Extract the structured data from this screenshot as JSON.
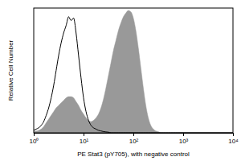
{
  "chart_data": {
    "type": "line",
    "x_label": "PE Stat3 (pY705), with negative control",
    "y_label": "Relative Cell Number",
    "log": "x",
    "tick_labels": "x",
    "x": [
      1,
      1.122,
      1.259,
      1.413,
      1.585,
      1.778,
      1.995,
      2.239,
      2.512,
      2.818,
      3.162,
      3.548,
      3.981,
      4.467,
      5.012,
      5.623,
      6.31,
      7.079,
      7.943,
      8.913,
      10,
      11.22,
      12.59,
      14.13,
      15.85,
      17.78,
      19.95,
      22.39,
      25.12,
      28.18,
      31.62,
      35.48,
      39.81,
      44.67,
      50.12,
      56.23,
      63.1,
      70.79,
      79.43,
      89.13,
      100,
      112.2,
      125.9,
      141.3,
      158.5,
      177.8,
      199.5,
      223.9,
      251.2,
      281.8,
      316.2,
      354.8,
      398.1,
      446.7,
      501.2,
      562.3,
      631,
      707.9,
      794.3,
      891.3,
      1000,
      3162,
      10000
    ],
    "xlim": [
      1,
      10000
    ],
    "xticks": [
      {
        "value": 1,
        "label": "10⁰"
      },
      {
        "value": 10,
        "label": "10¹"
      },
      {
        "value": 100,
        "label": "10²"
      },
      {
        "value": 1000,
        "label": "10³"
      },
      {
        "value": 10000,
        "label": "10⁴"
      }
    ],
    "ylim": [
      0,
      100
    ],
    "series": [
      {
        "type": "area",
        "color": "#999999",
        "values": [
          1,
          1.5,
          2,
          3,
          5,
          8,
          11,
          14,
          17,
          20,
          22,
          24,
          26,
          28,
          29,
          29,
          28,
          25,
          22,
          18,
          15,
          12,
          10,
          9,
          10,
          12,
          15,
          20,
          27,
          36,
          46,
          56,
          66,
          74,
          82,
          88,
          93,
          96,
          98,
          97,
          92,
          82,
          68,
          52,
          36,
          22,
          12,
          6,
          3,
          1.5,
          1,
          0,
          0,
          0,
          0,
          0,
          0,
          0,
          0,
          0,
          0,
          0,
          0
        ]
      },
      {
        "type": "line",
        "color": "#000000",
        "values": [
          2,
          3,
          4,
          6,
          9,
          14,
          20,
          28,
          38,
          50,
          62,
          72,
          80,
          86,
          93,
          90,
          92,
          80,
          62,
          44,
          28,
          17,
          10,
          6,
          4,
          3,
          2,
          1.5,
          1,
          0.7,
          0.5,
          0,
          0,
          0,
          0,
          0,
          0,
          0,
          0,
          0,
          0,
          0,
          0,
          0,
          0,
          0,
          0,
          0,
          0,
          0,
          0,
          0,
          0,
          0,
          0,
          0,
          0,
          0,
          0,
          0,
          0,
          0,
          0
        ]
      }
    ]
  }
}
